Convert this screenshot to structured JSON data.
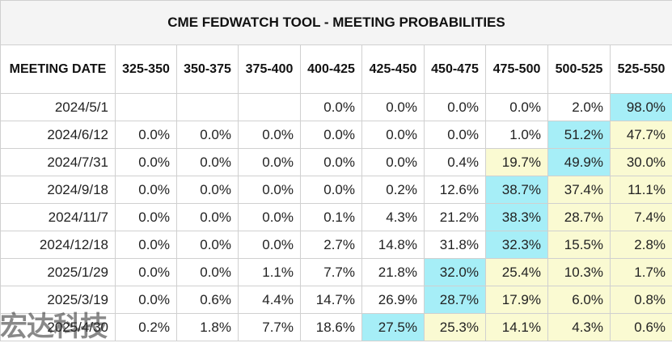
{
  "chart_data": {
    "type": "table",
    "title": "CME FEDWATCH TOOL - MEETING PROBABILITIES",
    "columns": [
      "MEETING DATE",
      "325-350",
      "350-375",
      "375-400",
      "400-425",
      "425-450",
      "450-475",
      "475-500",
      "500-525",
      "525-550"
    ],
    "rows": [
      {
        "date": "2024/5/1",
        "values": [
          "",
          "",
          "",
          "0.0%",
          "0.0%",
          "0.0%",
          "0.0%",
          "2.0%",
          "98.0%"
        ],
        "highlight": [
          0,
          0,
          0,
          0,
          0,
          0,
          0,
          0,
          2
        ]
      },
      {
        "date": "2024/6/12",
        "values": [
          "0.0%",
          "0.0%",
          "0.0%",
          "0.0%",
          "0.0%",
          "0.0%",
          "1.0%",
          "51.2%",
          "47.7%"
        ],
        "highlight": [
          0,
          0,
          0,
          0,
          0,
          0,
          0,
          2,
          1
        ]
      },
      {
        "date": "2024/7/31",
        "values": [
          "0.0%",
          "0.0%",
          "0.0%",
          "0.0%",
          "0.0%",
          "0.4%",
          "19.7%",
          "49.9%",
          "30.0%"
        ],
        "highlight": [
          0,
          0,
          0,
          0,
          0,
          0,
          1,
          2,
          1
        ]
      },
      {
        "date": "2024/9/18",
        "values": [
          "0.0%",
          "0.0%",
          "0.0%",
          "0.0%",
          "0.2%",
          "12.6%",
          "38.7%",
          "37.4%",
          "11.1%"
        ],
        "highlight": [
          0,
          0,
          0,
          0,
          0,
          0,
          2,
          1,
          1
        ]
      },
      {
        "date": "2024/11/7",
        "values": [
          "0.0%",
          "0.0%",
          "0.0%",
          "0.1%",
          "4.3%",
          "21.2%",
          "38.3%",
          "28.7%",
          "7.4%"
        ],
        "highlight": [
          0,
          0,
          0,
          0,
          0,
          0,
          2,
          1,
          1
        ]
      },
      {
        "date": "2024/12/18",
        "values": [
          "0.0%",
          "0.0%",
          "0.0%",
          "2.7%",
          "14.8%",
          "31.8%",
          "32.3%",
          "15.5%",
          "2.8%"
        ],
        "highlight": [
          0,
          0,
          0,
          0,
          0,
          0,
          2,
          1,
          1
        ]
      },
      {
        "date": "2025/1/29",
        "values": [
          "0.0%",
          "0.0%",
          "1.1%",
          "7.7%",
          "21.8%",
          "32.0%",
          "25.4%",
          "10.3%",
          "1.7%"
        ],
        "highlight": [
          0,
          0,
          0,
          0,
          0,
          2,
          1,
          1,
          1
        ]
      },
      {
        "date": "2025/3/19",
        "values": [
          "0.0%",
          "0.6%",
          "4.4%",
          "14.7%",
          "26.9%",
          "28.7%",
          "17.9%",
          "6.0%",
          "0.8%"
        ],
        "highlight": [
          0,
          0,
          0,
          0,
          0,
          2,
          1,
          1,
          1
        ]
      },
      {
        "date": "2025/4/30",
        "values": [
          "0.2%",
          "1.8%",
          "7.7%",
          "18.6%",
          "27.5%",
          "25.3%",
          "14.1%",
          "4.3%",
          "0.6%"
        ],
        "highlight": [
          0,
          0,
          0,
          0,
          2,
          1,
          1,
          1,
          1
        ]
      }
    ],
    "highlight_colors": {
      "max": "#a6eef7",
      "above_current": "#fafad2",
      "none": "#ffffff"
    }
  },
  "watermark": "宏达科技"
}
